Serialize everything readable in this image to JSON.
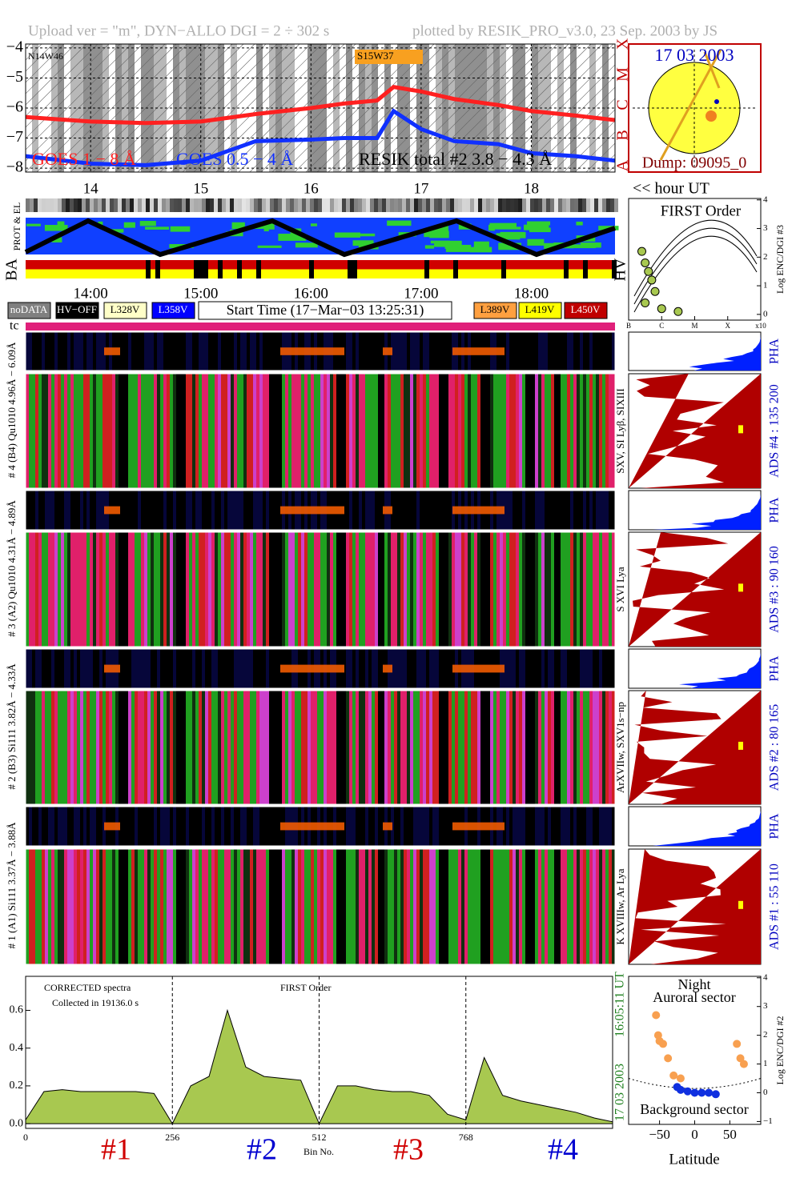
{
  "labels": {
    "header_left": "Upload ver = \"m\", DYN−ALLO DGI =  2 ÷ 302 s",
    "header_right": "plotted by RESIK_PRO_v3.0, 23 Sep. 2003 by JS",
    "goes_note_1": "N14W46",
    "goes_note_2": "S15W37",
    "class_letters": [
      "X",
      "M",
      "C",
      "B",
      "A"
    ],
    "sun_date": "17 03 2003",
    "dump": "Dump: 09095_0",
    "hour_ut": "<< hour UT",
    "prot": "PROT & EL",
    "ba": "BA",
    "hv": "HV",
    "time_labels": [
      "14:00",
      "15:00",
      "16:00",
      "17:00",
      "18:00"
    ],
    "legend_boxes": [
      {
        "label": "noDATA",
        "color": "#808080"
      },
      {
        "label": "HV−OFF",
        "color": "#000000"
      },
      {
        "label": "L328V",
        "color": "#ffffc8"
      },
      {
        "label": "L358V",
        "color": "#0000ff"
      },
      {
        "label": "L389V",
        "color": "#ffa040"
      },
      {
        "label": "L419V",
        "color": "#ffff00"
      },
      {
        "label": "L450V",
        "color": "#c00000"
      }
    ],
    "start_time": "Start Time (17−Mar−03 13:25:31)",
    "tc": "tc",
    "pha": "PHA",
    "channels": [
      {
        "left": "# 4 (B4) Qu1010 4.96Å − 6.09Å",
        "lines": "SXV, SI Lyβ, SIXIII",
        "ads": "ADS #4 :  135 200"
      },
      {
        "left": "# 3 (A2) Qu1010 4.31Å − 4.89Å",
        "lines": "S XVI Lya",
        "ads": "ADS #3 :  90 160"
      },
      {
        "left": "# 2 (B3) Si111 3.82Å − 4.33Å",
        "lines": "ArXVIIw, SXV1s−np",
        "ads": "ADS #2 :  80 165"
      },
      {
        "left": "# 1 (A1) Si111 3.37Å − 3.88Å",
        "lines": "K XVIIIw, Ar Lya",
        "ads": "ADS #1 :  55 110"
      }
    ],
    "spectrum_note_1": "CORRECTED spectra",
    "spectrum_note_2": "Collected in 19136.0 s",
    "spectrum_note_3": "FIRST Order",
    "sections": [
      {
        "label": "#1",
        "color": "#d00000"
      },
      {
        "label": "#2",
        "color": "#0000d0"
      },
      {
        "label": "#3",
        "color": "#d00000"
      },
      {
        "label": "#4",
        "color": "#0000d0"
      }
    ],
    "bin_no": "Bin No.",
    "stamp_date": "17 03 2003",
    "stamp_time": "16:05:11 UT"
  },
  "chart_data": [
    {
      "type": "line",
      "xlim": [
        13.41,
        18.76
      ],
      "ylim": [
        -8.13,
        -3.87
      ],
      "xticks": [
        14,
        15,
        16,
        17,
        18
      ],
      "yticks": [
        {
          "value": -4,
          "label": "−4"
        },
        {
          "value": -5,
          "label": "−5"
        },
        {
          "value": -6,
          "label": "−6"
        },
        {
          "value": -7,
          "label": "−7"
        },
        {
          "value": -8,
          "label": "−8"
        }
      ],
      "x": [
        13.41,
        14,
        14.5,
        15,
        15.5,
        16,
        16.3,
        16.6,
        16.75,
        17,
        17.3,
        17.7,
        18,
        18.4,
        18.76
      ],
      "series": [
        {
          "name": "GOES 1 − 8 Å",
          "color": "#ff2020",
          "values": [
            -6.3,
            -6.45,
            -6.5,
            -6.45,
            -6.2,
            -6.0,
            -5.85,
            -5.75,
            -5.3,
            -5.45,
            -5.7,
            -5.9,
            -6.1,
            -6.25,
            -6.4
          ]
        },
        {
          "name": "GOES 0.5 − 4 Å",
          "color": "#1030ff",
          "values": [
            -7.6,
            -7.85,
            -7.9,
            -7.75,
            -7.1,
            -7.05,
            -7.0,
            -7.0,
            -6.1,
            -6.7,
            -7.1,
            -7.2,
            -7.5,
            -7.6,
            -7.75
          ]
        },
        {
          "name": "RESIK total #2  3.8 − 4.3 Å",
          "color": "#000000",
          "values": [
            null,
            null,
            null,
            null,
            null,
            null,
            null,
            null,
            null,
            null,
            null,
            null,
            null,
            null,
            null
          ]
        }
      ]
    },
    {
      "type": "area",
      "color": "#a8c850",
      "xlim": [
        0,
        1024
      ],
      "ylim": [
        -0.025,
        0.78
      ],
      "xticks": [
        0,
        256,
        512,
        768
      ],
      "yticks": [
        {
          "value": 0,
          "label": "0.0"
        },
        0.2,
        0.4,
        0.6
      ],
      "x": [
        0,
        32,
        64,
        96,
        128,
        160,
        192,
        224,
        256,
        288,
        320,
        352,
        384,
        416,
        448,
        480,
        512,
        544,
        576,
        608,
        640,
        672,
        704,
        736,
        768,
        800,
        832,
        864,
        896,
        928,
        960,
        992,
        1024
      ],
      "values": [
        0.02,
        0.17,
        0.18,
        0.17,
        0.17,
        0.17,
        0.17,
        0.16,
        0.0,
        0.2,
        0.25,
        0.6,
        0.3,
        0.25,
        0.24,
        0.23,
        0.0,
        0.2,
        0.2,
        0.18,
        0.17,
        0.17,
        0.15,
        0.05,
        0.02,
        0.35,
        0.15,
        0.12,
        0.1,
        0.08,
        0.06,
        0.03,
        0.01
      ]
    },
    {
      "type": "scatter",
      "title": "FIRST Order",
      "ylabel": "Log ENC/DGI #3",
      "xlim": [
        -7,
        -3
      ],
      "ylim": [
        -0.2,
        4.05
      ],
      "xticks": [
        {
          "value": -7,
          "label": "B"
        },
        {
          "value": -6,
          "label": "C"
        },
        {
          "value": -5,
          "label": "M"
        },
        {
          "value": -4,
          "label": "X"
        },
        {
          "value": -3,
          "label": "x10"
        }
      ],
      "yticks": [
        0,
        1,
        2,
        3,
        4
      ],
      "series": [
        {
          "color": "#a8c850",
          "x": [
            -6.6,
            -6.5,
            -6.4,
            -6.3,
            -6.2,
            -6.5,
            -6.0,
            -5.5
          ],
          "values": [
            2.2,
            1.8,
            1.5,
            1.2,
            0.8,
            0.4,
            0.2,
            0.1
          ]
        }
      ]
    },
    {
      "type": "scatter",
      "title": "Night",
      "subtitle": "Auroral sector",
      "note": "Background sector",
      "xlabel": "Latitude",
      "ylabel": "Log ENC/DGI #2",
      "xlim": [
        -94,
        94
      ],
      "ylim": [
        -1.1,
        4.05
      ],
      "xticks": [
        {
          "value": -50,
          "label": "−50"
        },
        0,
        50
      ],
      "yticks": [
        {
          "value": -1,
          "label": "−1"
        },
        0,
        1,
        2,
        3,
        4
      ],
      "series": [
        {
          "color": "#f8a050",
          "x": [
            -55,
            -52,
            -50,
            -45,
            -38,
            -30,
            -20,
            60,
            65,
            70
          ],
          "values": [
            2.7,
            2.0,
            1.8,
            1.7,
            1.2,
            0.6,
            0.5,
            1.7,
            1.2,
            1.0
          ]
        },
        {
          "color": "#1030e0",
          "x": [
            -25,
            -20,
            -10,
            0,
            10,
            20,
            30
          ],
          "values": [
            0.2,
            0.1,
            0.05,
            0.0,
            0.0,
            0.0,
            -0.05
          ]
        }
      ]
    }
  ]
}
